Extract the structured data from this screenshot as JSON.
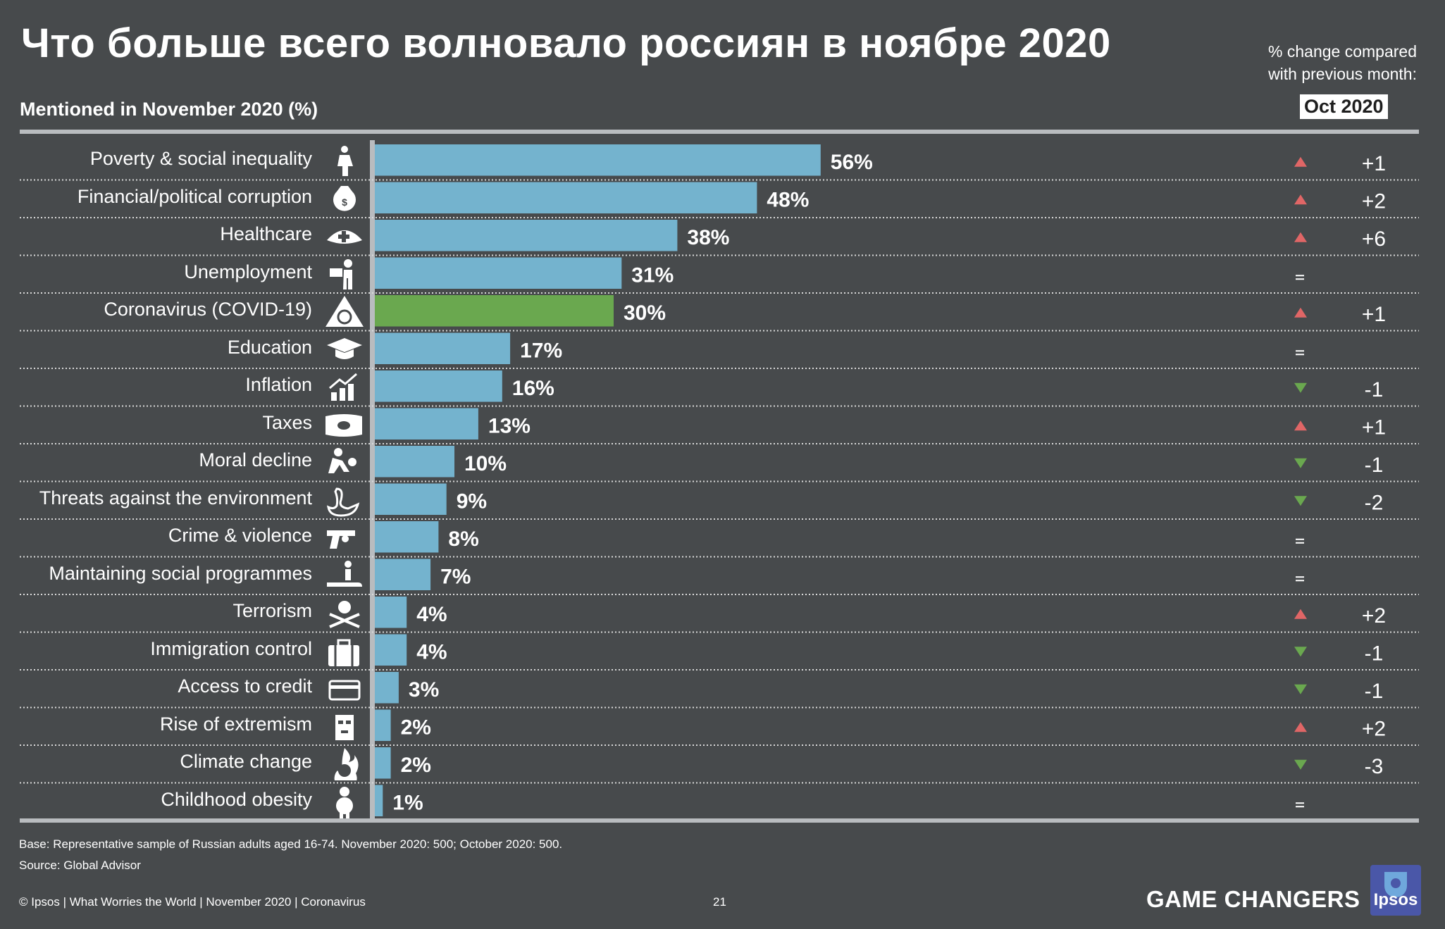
{
  "title": "Что больше всего волновало россиян в ноябре 2020",
  "subtitle": "Mentioned in November 2020 (%)",
  "change_note": [
    "% change compared",
    "with previous month:"
  ],
  "period_badge": "Oct 2020",
  "colors": {
    "bar": "#74b3ce",
    "highlight": "#6aa84f",
    "up": "#e06666",
    "down": "#6aa84f",
    "background": "#474a4c"
  },
  "chart_data": {
    "type": "bar",
    "orientation": "horizontal",
    "title": "Что больше всего волновало россиян в ноябре 2020",
    "xlabel": "",
    "ylabel": "Mentioned in November 2020 (%)",
    "xlim": [
      0,
      60
    ],
    "categories": [
      "Poverty & social inequality",
      "Financial/political corruption",
      "Healthcare",
      "Unemployment",
      "Coronavirus (COVID-19)",
      "Education",
      "Inflation",
      "Taxes",
      "Moral decline",
      "Threats against the environment",
      "Crime & violence",
      "Maintaining social programmes",
      "Terrorism",
      "Immigration control",
      "Access to credit",
      "Rise of extremism",
      "Climate change",
      "Childhood obesity"
    ],
    "values": [
      56,
      48,
      38,
      31,
      30,
      17,
      16,
      13,
      10,
      9,
      8,
      7,
      4,
      4,
      3,
      2,
      2,
      1
    ],
    "value_labels": [
      "56%",
      "48%",
      "38%",
      "31%",
      "30%",
      "17%",
      "16%",
      "13%",
      "10%",
      "9%",
      "8%",
      "7%",
      "4%",
      "4%",
      "3%",
      "2%",
      "2%",
      "1%"
    ],
    "highlighted": [
      false,
      false,
      false,
      false,
      true,
      false,
      false,
      false,
      false,
      false,
      false,
      false,
      false,
      false,
      false,
      false,
      false,
      false
    ],
    "change_vs_oct_2020": [
      1,
      2,
      6,
      0,
      1,
      0,
      -1,
      1,
      -1,
      -2,
      0,
      0,
      2,
      -1,
      -1,
      2,
      -3,
      0
    ],
    "change_labels": [
      "+1",
      "+2",
      "+6",
      "=",
      "+1",
      "=",
      "-1",
      "+1",
      "-1",
      "-2",
      "=",
      "=",
      "+2",
      "-1",
      "-1",
      "+2",
      "-3",
      "="
    ],
    "icons": [
      "person-icon",
      "money-bag-icon",
      "nurse-cap-icon",
      "unemployed-worker-icon",
      "biohazard-icon",
      "graduation-cap-icon",
      "rising-chart-icon",
      "tax-icon",
      "fight-icon",
      "oil-swan-icon",
      "revolver-icon",
      "social-care-icon",
      "skull-crossbones-icon",
      "suitcase-icon",
      "credit-card-icon",
      "balaclava-icon",
      "burning-globe-icon",
      "obese-child-icon"
    ]
  },
  "footer": {
    "base": "Base: Representative sample of Russian adults aged 16-74. November 2020: 500; October 2020: 500.",
    "source": "Source: Global Advisor",
    "copyright": "© Ipsos | What Worries the World | November 2020 |  Coronavirus",
    "page_number": "21",
    "brand": "GAME CHANGERS",
    "logo": "Ipsos"
  }
}
